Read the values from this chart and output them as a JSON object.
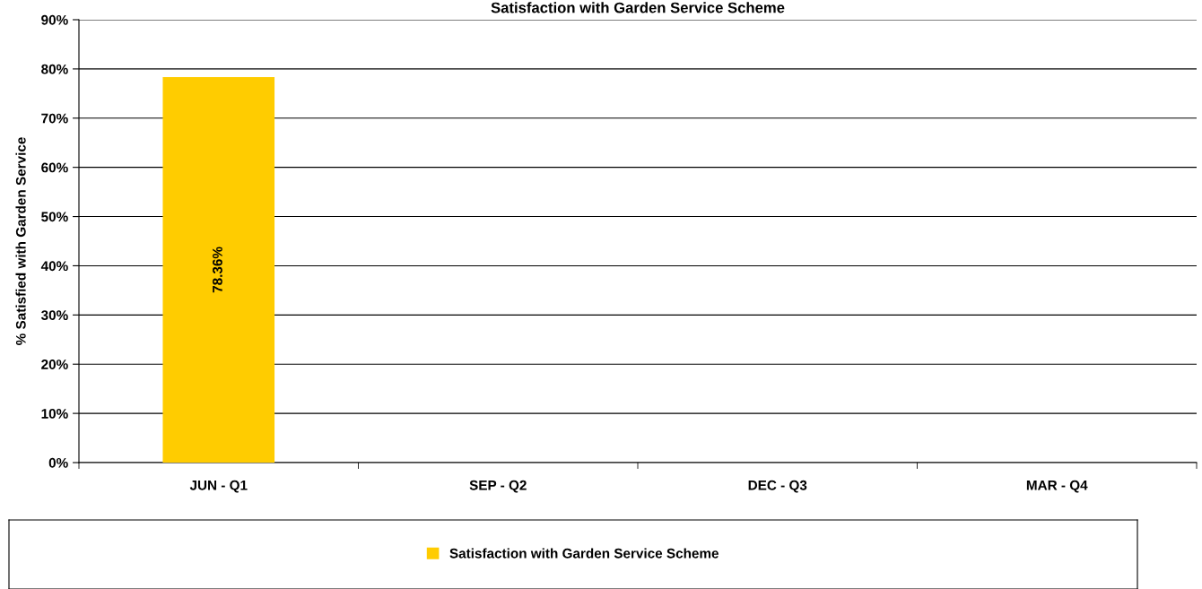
{
  "chart_data": {
    "type": "bar",
    "title": "Satisfaction with Garden Service Scheme",
    "ylabel": "% Satisfied with Garden Service",
    "categories": [
      "JUN - Q1",
      "SEP - Q2",
      "DEC - Q3",
      "MAR - Q4"
    ],
    "series": [
      {
        "name": "Satisfaction with Garden Service Scheme",
        "color": "#ffcc00",
        "values": [
          78.36,
          null,
          null,
          null
        ],
        "value_labels": [
          "78.36%",
          null,
          null,
          null
        ]
      }
    ],
    "ylim": [
      0,
      90
    ],
    "yticks": [
      {
        "value": 0,
        "label": "0%"
      },
      {
        "value": 10,
        "label": "10%"
      },
      {
        "value": 20,
        "label": "20%"
      },
      {
        "value": 30,
        "label": "30%"
      },
      {
        "value": 40,
        "label": "40%"
      },
      {
        "value": 50,
        "label": "50%"
      },
      {
        "value": 60,
        "label": "60%"
      },
      {
        "value": 70,
        "label": "70%"
      },
      {
        "value": 80,
        "label": "80%"
      },
      {
        "value": 90,
        "label": "90%"
      }
    ],
    "grid": "y",
    "legend": "bottom"
  }
}
